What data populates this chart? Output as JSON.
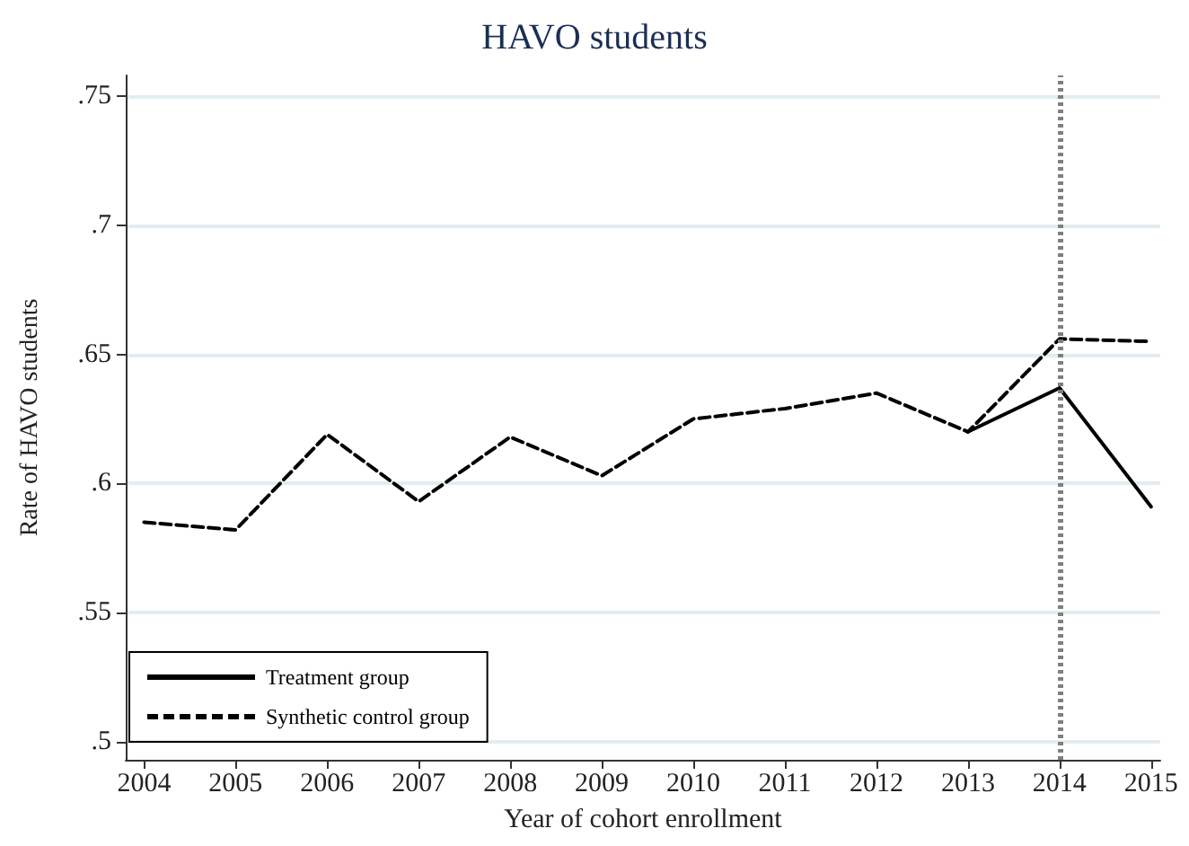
{
  "chart_data": {
    "type": "line",
    "title": "HAVO students",
    "xlabel": "Year of cohort enrollment",
    "ylabel": "Rate of HAVO students",
    "x": [
      2004,
      2005,
      2006,
      2007,
      2008,
      2009,
      2010,
      2011,
      2012,
      2013,
      2014,
      2015
    ],
    "series": [
      {
        "name": "Treatment group",
        "color": "#000000",
        "line_style": "solid",
        "values": [
          null,
          null,
          null,
          null,
          null,
          null,
          null,
          null,
          null,
          0.62,
          0.637,
          0.591
        ]
      },
      {
        "name": "Synthetic control group",
        "color": "#000000",
        "line_style": "dashed",
        "values": [
          0.585,
          0.582,
          0.619,
          0.593,
          0.618,
          0.603,
          0.625,
          0.629,
          0.635,
          0.62,
          0.656,
          0.655
        ]
      }
    ],
    "xlim": [
      2003.8,
      2015.1
    ],
    "xticks": [
      2004,
      2005,
      2006,
      2007,
      2008,
      2009,
      2010,
      2011,
      2012,
      2013,
      2014,
      2015
    ],
    "ylim": [
      0.493,
      0.758
    ],
    "yticks": [
      {
        "value": 0.5,
        "label": ".5"
      },
      {
        "value": 0.55,
        "label": ".55"
      },
      {
        "value": 0.6,
        "label": ".6"
      },
      {
        "value": 0.65,
        "label": ".65"
      },
      {
        "value": 0.7,
        "label": ".7"
      },
      {
        "value": 0.75,
        "label": ".75"
      }
    ],
    "grid": "y",
    "legend": "bottom left",
    "marker": "none",
    "ref_lines": [
      {
        "axis": "x",
        "value": 2014,
        "color": "#808080",
        "line_style": "dotted"
      }
    ]
  }
}
